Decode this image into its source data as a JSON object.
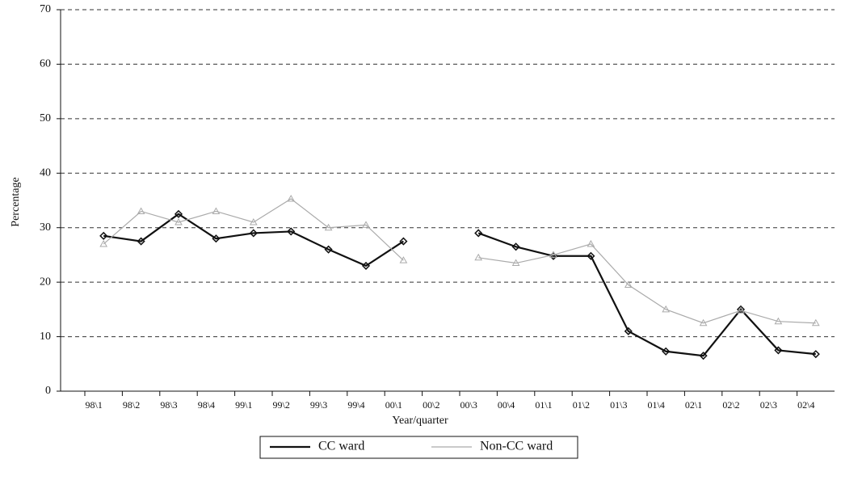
{
  "chart_data": {
    "type": "line",
    "x_label": "Year/quarter",
    "y_label": "Percentage",
    "categories": [
      "98\\1",
      "98\\2",
      "98\\3",
      "98\\4",
      "99\\1",
      "99\\2",
      "99\\3",
      "99\\4",
      "00\\1",
      "00\\2",
      "00\\3",
      "00\\4",
      "01\\1",
      "01\\2",
      "01\\3",
      "01\\4",
      "02\\1",
      "02\\2",
      "02\\3",
      "02\\4"
    ],
    "series": [
      {
        "name": "CC ward",
        "color": "#111111",
        "values": [
          28.5,
          27.5,
          32.5,
          28,
          29,
          29.3,
          26,
          23,
          27.5,
          null,
          29,
          26.5,
          24.8,
          24.8,
          11,
          7.3,
          6.5,
          15,
          7.5,
          6.8
        ]
      },
      {
        "name": "Non-CC ward",
        "color": "#aaaaaa",
        "values": [
          27,
          33,
          31,
          33,
          31,
          35.3,
          30,
          30.5,
          24,
          null,
          24.5,
          23.5,
          25,
          27,
          19.5,
          15,
          12.5,
          14.8,
          12.8,
          12.5
        ]
      }
    ],
    "ylim": [
      0,
      70
    ],
    "yticks": [
      0,
      10,
      20,
      30,
      40,
      50,
      60,
      70
    ],
    "grid": true,
    "legend": "bottom"
  }
}
